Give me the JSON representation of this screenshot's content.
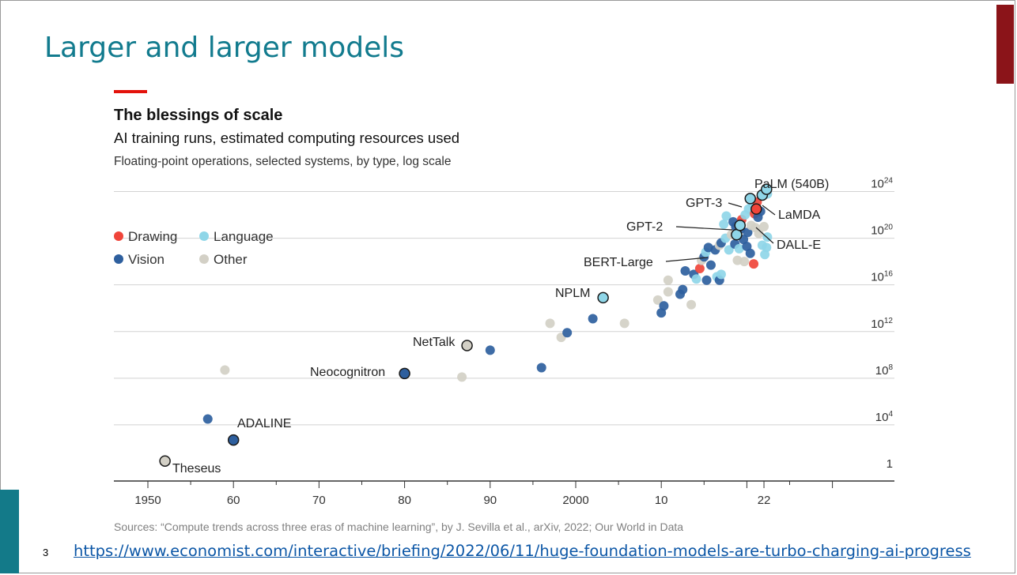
{
  "slide": {
    "title": "Larger and larger models",
    "number": "3",
    "link": "https://www.economist.com/interactive/briefing/2022/06/11/huge-foundation-models-are-turbo-charging-ai-progress"
  },
  "colors": {
    "title": "#127b8e",
    "accent_right": "#8b1419",
    "accent_left": "#137a89",
    "economist_red": "#e3120b",
    "drawing": "#f0453a",
    "language": "#8fd6e8",
    "vision": "#2e5f9e",
    "other": "#d3d0c6"
  },
  "chart_data": {
    "type": "scatter",
    "title": "The blessings of scale",
    "subtitle": "AI training runs, estimated computing resources used",
    "ylabel": "Floating-point operations, selected systems, by type, log scale",
    "source": "Sources: “Compute trends across three eras of machine learning”, by J. Sevilla et al., arXiv, 2022; Our World in Data",
    "xlim": [
      1945,
      2034
    ],
    "ylim_log10": [
      0,
      24
    ],
    "x_ticks": [
      {
        "value": 1950,
        "label": "1950"
      },
      {
        "value": 1960,
        "label": "60"
      },
      {
        "value": 1970,
        "label": "70"
      },
      {
        "value": 1980,
        "label": "80"
      },
      {
        "value": 1990,
        "label": "90"
      },
      {
        "value": 2000,
        "label": "2000"
      },
      {
        "value": 2010,
        "label": "10"
      },
      {
        "value": 2022,
        "label": "22"
      }
    ],
    "y_ticks": [
      {
        "exp": 0,
        "base": "1",
        "sup": ""
      },
      {
        "exp": 4,
        "base": "10",
        "sup": "4"
      },
      {
        "exp": 8,
        "base": "10",
        "sup": "8"
      },
      {
        "exp": 12,
        "base": "10",
        "sup": "12"
      },
      {
        "exp": 16,
        "base": "10",
        "sup": "16"
      },
      {
        "exp": 20,
        "base": "10",
        "sup": "20"
      },
      {
        "exp": 24,
        "base": "10",
        "sup": "24"
      }
    ],
    "legend": {
      "position": "top-left",
      "items": [
        {
          "type": "drawing",
          "label": "Drawing"
        },
        {
          "type": "language",
          "label": "Language"
        },
        {
          "type": "vision",
          "label": "Vision"
        },
        {
          "type": "other",
          "label": "Other"
        }
      ]
    },
    "grid": true,
    "highlighted": [
      {
        "name": "Theseus",
        "year": 1952,
        "log_flops": 0.9,
        "type": "other"
      },
      {
        "name": "ADALINE",
        "year": 1960,
        "log_flops": 2.7,
        "type": "vision"
      },
      {
        "name": "Neocognitron",
        "year": 1980,
        "log_flops": 8.4,
        "type": "vision"
      },
      {
        "name": "NetTalk",
        "year": 1987.3,
        "log_flops": 10.8,
        "type": "other"
      },
      {
        "name": "NPLM",
        "year": 2003.2,
        "log_flops": 14.9,
        "type": "language"
      },
      {
        "name": "BERT-Large",
        "year": 2018.8,
        "log_flops": 20.3,
        "type": "language"
      },
      {
        "name": "GPT-2",
        "year": 2019.2,
        "log_flops": 21.1,
        "type": "language"
      },
      {
        "name": "GPT-3",
        "year": 2020.4,
        "log_flops": 23.4,
        "type": "language"
      },
      {
        "name": "DALL-E",
        "year": 2021.1,
        "log_flops": 22.5,
        "type": "drawing"
      },
      {
        "name": "LaMDA",
        "year": 2021.8,
        "log_flops": 23.7,
        "type": "language"
      },
      {
        "name": "PaLM (540B)",
        "year": 2022.3,
        "log_flops": 24.2,
        "type": "language"
      }
    ],
    "points": [
      {
        "year": 1959,
        "log_flops": 8.7,
        "type": "other"
      },
      {
        "year": 1957,
        "log_flops": 4.5,
        "type": "vision"
      },
      {
        "year": 1986.7,
        "log_flops": 8.1,
        "type": "other"
      },
      {
        "year": 1990,
        "log_flops": 10.4,
        "type": "vision"
      },
      {
        "year": 1996,
        "log_flops": 8.9,
        "type": "vision"
      },
      {
        "year": 1997,
        "log_flops": 12.7,
        "type": "other"
      },
      {
        "year": 1998.3,
        "log_flops": 11.5,
        "type": "other"
      },
      {
        "year": 1999,
        "log_flops": 11.9,
        "type": "vision"
      },
      {
        "year": 2002,
        "log_flops": 13.1,
        "type": "vision"
      },
      {
        "year": 2005.7,
        "log_flops": 12.7,
        "type": "other"
      },
      {
        "year": 2009.6,
        "log_flops": 14.7,
        "type": "other"
      },
      {
        "year": 2010,
        "log_flops": 13.6,
        "type": "vision"
      },
      {
        "year": 2010.3,
        "log_flops": 14.2,
        "type": "vision"
      },
      {
        "year": 2010.8,
        "log_flops": 16.4,
        "type": "other"
      },
      {
        "year": 2010.8,
        "log_flops": 15.4,
        "type": "other"
      },
      {
        "year": 2012.2,
        "log_flops": 15.2,
        "type": "vision"
      },
      {
        "year": 2012.5,
        "log_flops": 15.6,
        "type": "vision"
      },
      {
        "year": 2012.8,
        "log_flops": 17.2,
        "type": "vision"
      },
      {
        "year": 2013.5,
        "log_flops": 14.3,
        "type": "other"
      },
      {
        "year": 2013.8,
        "log_flops": 16.9,
        "type": "vision"
      },
      {
        "year": 2014.1,
        "log_flops": 16.5,
        "type": "language"
      },
      {
        "year": 2014.5,
        "log_flops": 17.4,
        "type": "drawing"
      },
      {
        "year": 2014.7,
        "log_flops": 18.1,
        "type": "other"
      },
      {
        "year": 2015.0,
        "log_flops": 18.4,
        "type": "vision"
      },
      {
        "year": 2015.2,
        "log_flops": 18.8,
        "type": "language"
      },
      {
        "year": 2015.3,
        "log_flops": 16.4,
        "type": "vision"
      },
      {
        "year": 2015.5,
        "log_flops": 19.2,
        "type": "vision"
      },
      {
        "year": 2015.8,
        "log_flops": 17.7,
        "type": "vision"
      },
      {
        "year": 2016.3,
        "log_flops": 19.0,
        "type": "vision"
      },
      {
        "year": 2016.5,
        "log_flops": 16.7,
        "type": "language"
      },
      {
        "year": 2016.8,
        "log_flops": 16.4,
        "type": "vision"
      },
      {
        "year": 2016.8,
        "log_flops": 19.4,
        "type": "other"
      },
      {
        "year": 2017.0,
        "log_flops": 19.6,
        "type": "vision"
      },
      {
        "year": 2017.0,
        "log_flops": 16.9,
        "type": "language"
      },
      {
        "year": 2017.3,
        "log_flops": 21.2,
        "type": "language"
      },
      {
        "year": 2017.5,
        "log_flops": 20.0,
        "type": "language"
      },
      {
        "year": 2017.6,
        "log_flops": 21.9,
        "type": "language"
      },
      {
        "year": 2017.9,
        "log_flops": 19.0,
        "type": "language"
      },
      {
        "year": 2018.2,
        "log_flops": 20.3,
        "type": "other"
      },
      {
        "year": 2018.4,
        "log_flops": 21.4,
        "type": "vision"
      },
      {
        "year": 2018.6,
        "log_flops": 19.5,
        "type": "vision"
      },
      {
        "year": 2018.7,
        "log_flops": 21.0,
        "type": "vision"
      },
      {
        "year": 2018.9,
        "log_flops": 18.1,
        "type": "other"
      },
      {
        "year": 2019.1,
        "log_flops": 19.1,
        "type": "language"
      },
      {
        "year": 2019.3,
        "log_flops": 20.8,
        "type": "vision"
      },
      {
        "year": 2019.4,
        "log_flops": 21.6,
        "type": "drawing"
      },
      {
        "year": 2019.6,
        "log_flops": 19.9,
        "type": "vision"
      },
      {
        "year": 2019.7,
        "log_flops": 18.0,
        "type": "other"
      },
      {
        "year": 2019.8,
        "log_flops": 22.0,
        "type": "language"
      },
      {
        "year": 2020.0,
        "log_flops": 19.3,
        "type": "vision"
      },
      {
        "year": 2020.1,
        "log_flops": 20.5,
        "type": "vision"
      },
      {
        "year": 2020.2,
        "log_flops": 22.5,
        "type": "language"
      },
      {
        "year": 2020.4,
        "log_flops": 18.7,
        "type": "vision"
      },
      {
        "year": 2020.5,
        "log_flops": 21.1,
        "type": "other"
      },
      {
        "year": 2020.6,
        "log_flops": 23.0,
        "type": "language"
      },
      {
        "year": 2020.8,
        "log_flops": 17.8,
        "type": "drawing"
      },
      {
        "year": 2020.9,
        "log_flops": 22.1,
        "type": "drawing"
      },
      {
        "year": 2021.0,
        "log_flops": 20.9,
        "type": "other"
      },
      {
        "year": 2021.2,
        "log_flops": 23.1,
        "type": "drawing"
      },
      {
        "year": 2021.3,
        "log_flops": 21.8,
        "type": "vision"
      },
      {
        "year": 2021.4,
        "log_flops": 20.4,
        "type": "other"
      },
      {
        "year": 2021.6,
        "log_flops": 22.3,
        "type": "vision"
      },
      {
        "year": 2021.8,
        "log_flops": 19.4,
        "type": "language"
      },
      {
        "year": 2022.0,
        "log_flops": 21.0,
        "type": "other"
      },
      {
        "year": 2022.3,
        "log_flops": 19.2,
        "type": "language"
      },
      {
        "year": 2022.4,
        "log_flops": 23.8,
        "type": "language"
      },
      {
        "year": 2022.1,
        "log_flops": 18.6,
        "type": "language"
      },
      {
        "year": 2022.4,
        "log_flops": 20.1,
        "type": "language"
      }
    ]
  }
}
